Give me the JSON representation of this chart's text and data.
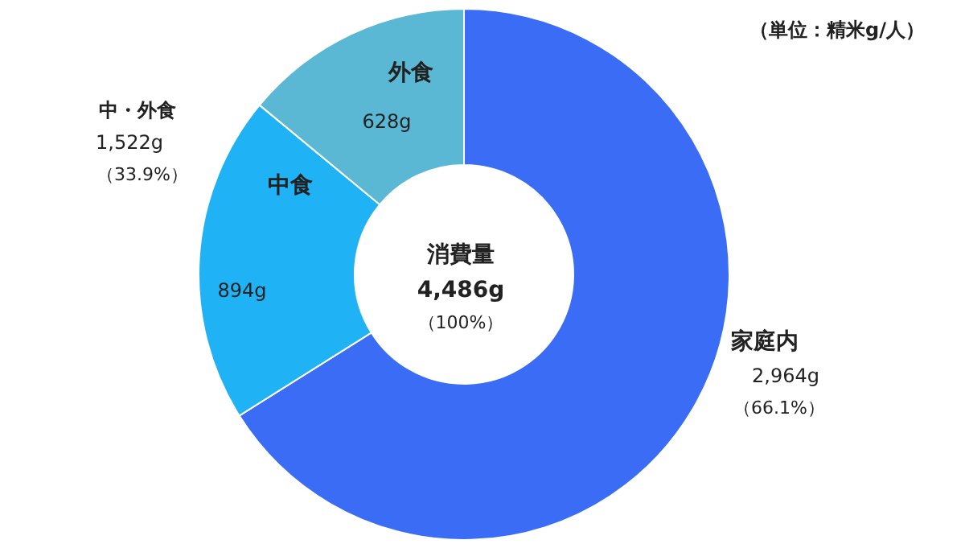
{
  "chart_data": {
    "type": "donut",
    "categories": [
      "家庭内",
      "中食",
      "外食"
    ],
    "values": [
      2964,
      894,
      628
    ],
    "colors": [
      "#3a6cf5",
      "#1fb3f5",
      "#5bb8d5"
    ],
    "value_labels": [
      "2,964g",
      "894g",
      "628g"
    ],
    "annotations": [
      "消費量",
      "4,486g",
      "（100%）",
      "中・外食",
      "1,522g",
      "（33.9%）",
      "（66.1%）",
      "（単位：精米g/人）"
    ]
  }
}
